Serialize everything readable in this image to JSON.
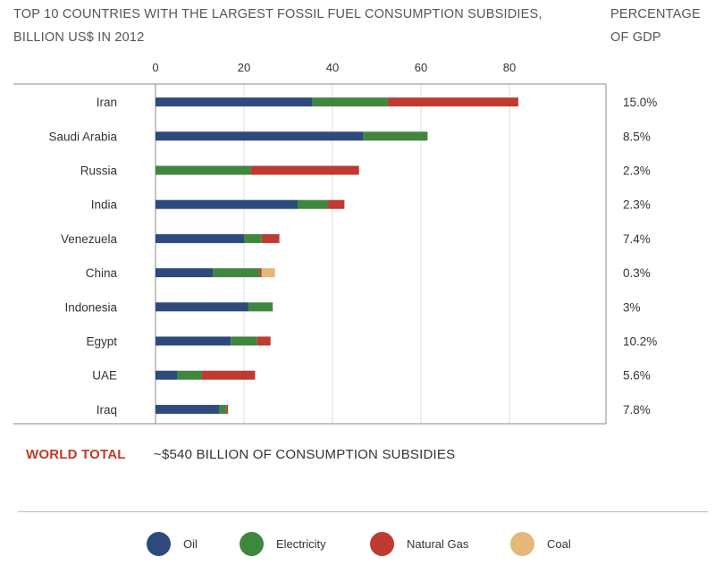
{
  "header": {
    "title_line1": "TOP 10 COUNTRIES WITH THE LARGEST FOSSIL FUEL CONSUMPTION SUBSIDIES,",
    "title_line2": "BILLION US$ IN 2012",
    "pct_line1": "PERCENTAGE",
    "pct_line2": "OF GDP"
  },
  "colors": {
    "oil": "#2e4a7d",
    "electricity": "#3f873f",
    "natural_gas": "#bf3a31",
    "coal": "#e3b878",
    "grid": "#dddddd",
    "axis": "#888888"
  },
  "chart_data": {
    "type": "bar",
    "orientation": "horizontal",
    "stacked": true,
    "categories": [
      "Iran",
      "Saudi Arabia",
      "Russia",
      "India",
      "Venezuela",
      "China",
      "Indonesia",
      "Egypt",
      "UAE",
      "Iraq"
    ],
    "series": [
      {
        "name": "Oil",
        "color": "#2e4a7d",
        "values": [
          35.5,
          47,
          0,
          32.2,
          20,
          13,
          21,
          17,
          5,
          14.5
        ]
      },
      {
        "name": "Electricity",
        "color": "#3f873f",
        "values": [
          17,
          14.5,
          21.5,
          6.8,
          4,
          10.5,
          5.5,
          6,
          5.5,
          1.5
        ]
      },
      {
        "name": "Natural Gas",
        "color": "#bf3a31",
        "values": [
          29.5,
          0,
          24.5,
          3.7,
          4,
          0.5,
          0,
          3,
          12,
          0.4
        ]
      },
      {
        "name": "Coal",
        "color": "#e3b878",
        "values": [
          0,
          0,
          0,
          0,
          0,
          3,
          0,
          0,
          0,
          0
        ]
      }
    ],
    "pct_gdp": [
      "15.0%",
      "8.5%",
      "2.3%",
      "2.3%",
      "7.4%",
      "0.3%",
      "3%",
      "10.2%",
      "5.6%",
      "7.8%"
    ],
    "xticks": [
      0,
      20,
      40,
      60,
      80
    ],
    "xlim": [
      0,
      102
    ],
    "grid": true,
    "legend_position": "bottom"
  },
  "world_total": {
    "label": "WORLD TOTAL",
    "text": "~$540 BILLION OF CONSUMPTION SUBSIDIES"
  },
  "legend": [
    {
      "label": "Oil",
      "color": "#2e4a7d"
    },
    {
      "label": "Electricity",
      "color": "#3f873f"
    },
    {
      "label": "Natural Gas",
      "color": "#bf3a31"
    },
    {
      "label": "Coal",
      "color": "#e3b878"
    }
  ]
}
